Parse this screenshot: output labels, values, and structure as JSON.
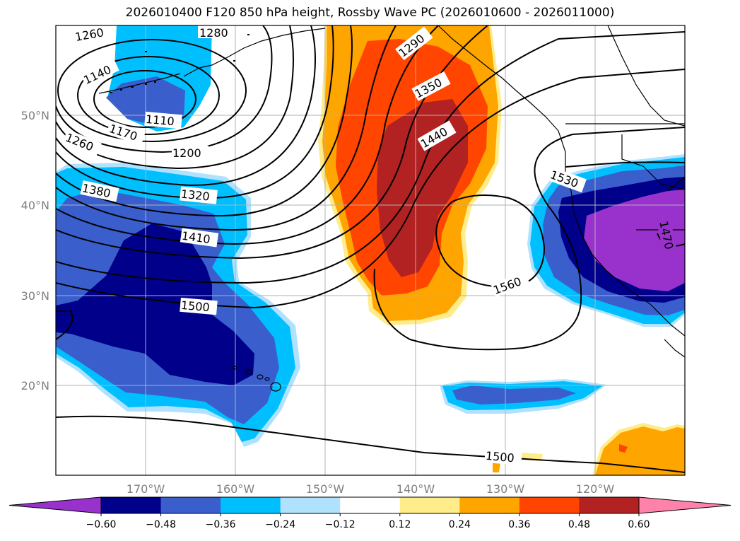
{
  "title": "2026010400 F120 850 hPa height, Rossby Wave PC (2026010600 - 2026011000)",
  "map": {
    "region": "North Pacific",
    "lon_range": [
      -180,
      -110
    ],
    "lat_range": [
      10,
      60
    ],
    "lon_ticks": [
      "170°W",
      "160°W",
      "150°W",
      "140°W",
      "130°W",
      "120°W"
    ],
    "lat_ticks": [
      "50°N",
      "40°N",
      "30°N",
      "20°N"
    ],
    "grid": true
  },
  "contour_labels": [
    "1260",
    "1280",
    "1140",
    "1110",
    "1170",
    "1200",
    "1260",
    "1320",
    "1380",
    "1410",
    "1500",
    "1290",
    "1350",
    "1440",
    "1530",
    "1560",
    "1470",
    "1500"
  ],
  "colorbar": {
    "ticks": [
      "−0.60",
      "−0.48",
      "−0.36",
      "−0.24",
      "−0.12",
      "0.12",
      "0.24",
      "0.36",
      "0.48",
      "0.60"
    ],
    "colors": [
      "#9932cc",
      "#00008b",
      "#3a5fcd",
      "#00bfff",
      "#b0e2ff",
      "#ffffff",
      "#ffec8b",
      "#ffa500",
      "#ff4500",
      "#b22222",
      "#ff82ab"
    ]
  }
}
